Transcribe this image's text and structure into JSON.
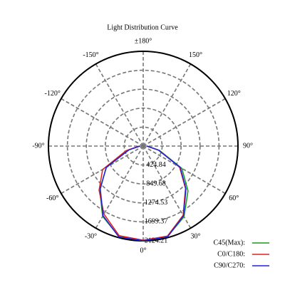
{
  "chart_data": {
    "type": "polar",
    "title": "Light Distribution Curve",
    "x": [
      -90,
      -75,
      -60,
      -45,
      -30,
      -15,
      0,
      15,
      30,
      45,
      60,
      75,
      90
    ],
    "series": [
      {
        "name": "C45(Max):",
        "color": "#1a9a1a",
        "values": [
          80,
          340,
          950,
          1380,
          1820,
          2100,
          2124.21,
          2100,
          1830,
          1420,
          1000,
          380,
          90
        ]
      },
      {
        "name": "C0/C180:",
        "color": "#e02020",
        "values": [
          90,
          400,
          1050,
          1400,
          1760,
          2080,
          2110,
          2090,
          1790,
          1340,
          940,
          360,
          80
        ]
      },
      {
        "name": "C90/C270:",
        "color": "#2020e0",
        "values": [
          70,
          330,
          960,
          1360,
          1800,
          2110,
          2120,
          2108,
          1805,
          1357,
          958,
          351,
          80
        ]
      }
    ],
    "rlim": [
      0,
      2124.21
    ],
    "rticks": [
      424.84,
      849.68,
      1274.53,
      1699.37,
      2124.21
    ],
    "angle_ticks": [
      {
        "value": 0,
        "label": "0°"
      },
      {
        "value": 30,
        "label": "30°"
      },
      {
        "value": 60,
        "label": "60°"
      },
      {
        "value": 90,
        "label": "90°"
      },
      {
        "value": 120,
        "label": "120°"
      },
      {
        "value": 150,
        "label": "150°"
      },
      {
        "value": 180,
        "label": "±180°"
      },
      {
        "value": -150,
        "label": "-150°"
      },
      {
        "value": -120,
        "label": "-120°"
      },
      {
        "value": -90,
        "label": "-90°"
      },
      {
        "value": -60,
        "label": "-60°"
      },
      {
        "value": -30,
        "label": "-30°"
      }
    ]
  }
}
